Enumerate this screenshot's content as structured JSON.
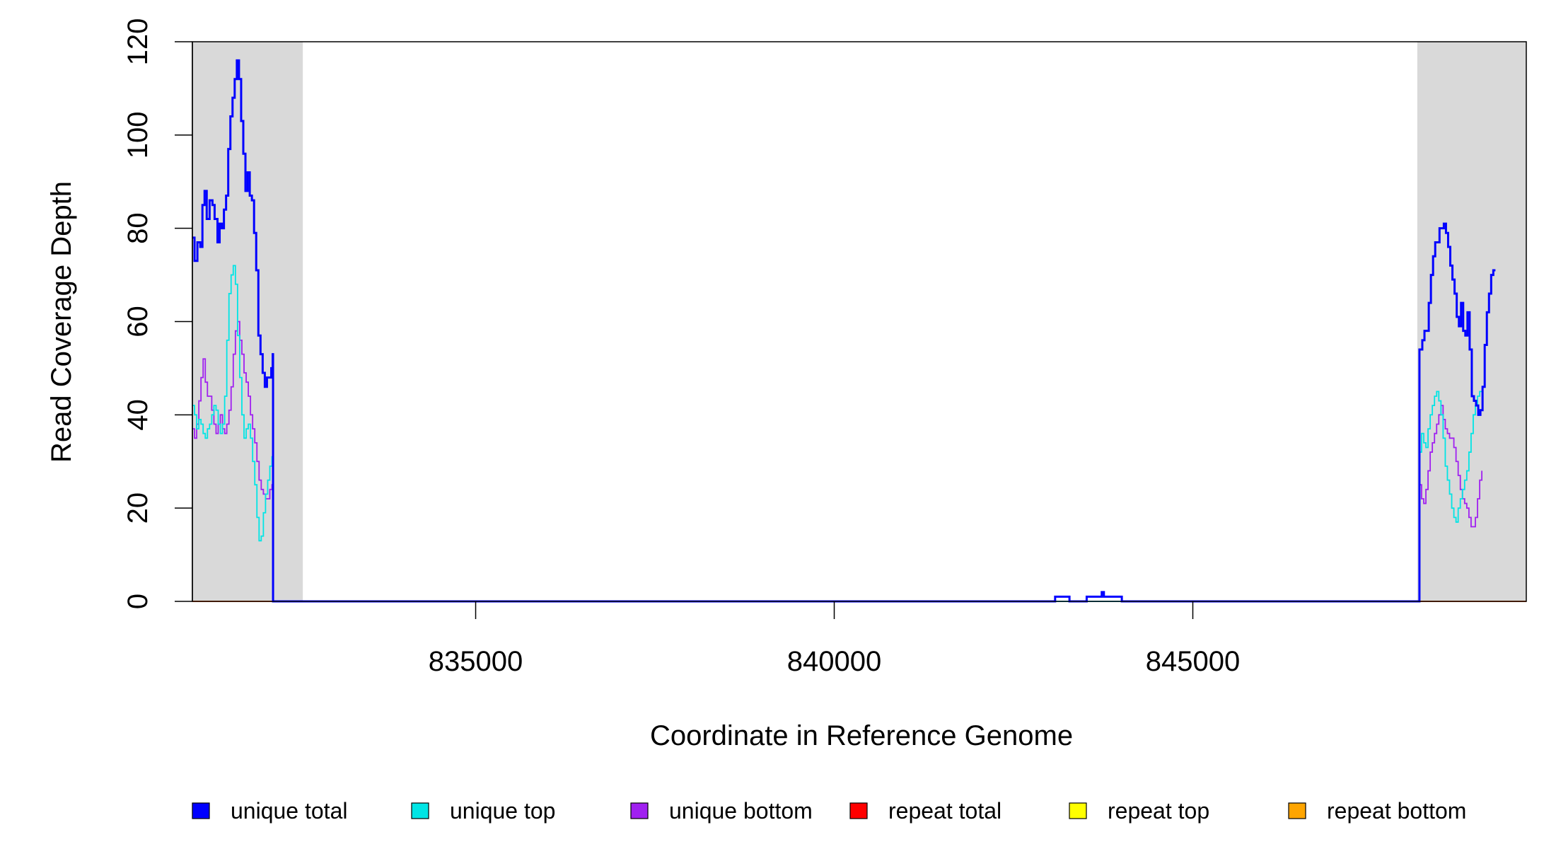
{
  "chart_data": {
    "type": "line",
    "xlabel": "Coordinate in Reference Genome",
    "ylabel": "Read Coverage Depth",
    "xlim": [
      831050,
      849650
    ],
    "ylim": [
      0,
      120
    ],
    "xticks": [
      835000,
      840000,
      845000
    ],
    "yticks": [
      0,
      20,
      40,
      60,
      80,
      100,
      120
    ],
    "grid": false,
    "shaded_regions": [
      {
        "x0": 831050,
        "x1": 832590
      },
      {
        "x0": 848130,
        "x1": 849650
      }
    ],
    "legend": {
      "position": "bottom",
      "entries": [
        {
          "label": "unique total",
          "color": "#0000ff"
        },
        {
          "label": "unique top",
          "color": "#00e5e5"
        },
        {
          "label": "unique bottom",
          "color": "#a020f0"
        },
        {
          "label": "repeat total",
          "color": "#ff0000"
        },
        {
          "label": "repeat top",
          "color": "#ffff00"
        },
        {
          "label": "repeat bottom",
          "color": "#ffa500"
        }
      ]
    },
    "series": [
      {
        "name": "unique total",
        "color": "#0000ff",
        "width": 3,
        "points": [
          [
            831050,
            78
          ],
          [
            831080,
            73
          ],
          [
            831120,
            77
          ],
          [
            831160,
            76
          ],
          [
            831190,
            85
          ],
          [
            831220,
            88
          ],
          [
            831250,
            82
          ],
          [
            831290,
            86
          ],
          [
            831330,
            85
          ],
          [
            831360,
            82
          ],
          [
            831400,
            77
          ],
          [
            831430,
            81
          ],
          [
            831460,
            80
          ],
          [
            831490,
            84
          ],
          [
            831520,
            87
          ],
          [
            831550,
            97
          ],
          [
            831580,
            104
          ],
          [
            831610,
            108
          ],
          [
            831640,
            112
          ],
          [
            831670,
            116
          ],
          [
            831700,
            112
          ],
          [
            831730,
            103
          ],
          [
            831760,
            96
          ],
          [
            831790,
            88
          ],
          [
            831820,
            92
          ],
          [
            831850,
            87
          ],
          [
            831880,
            86
          ],
          [
            831910,
            79
          ],
          [
            831940,
            71
          ],
          [
            831970,
            57
          ],
          [
            832000,
            53
          ],
          [
            832030,
            49
          ],
          [
            832060,
            46
          ],
          [
            832090,
            48
          ],
          [
            832120,
            48
          ],
          [
            832150,
            50
          ],
          [
            832170,
            53
          ],
          [
            832175,
            0
          ],
          [
            843050,
            0
          ],
          [
            843080,
            1
          ],
          [
            843260,
            1
          ],
          [
            843280,
            0
          ],
          [
            843500,
            0
          ],
          [
            843520,
            1
          ],
          [
            843700,
            1
          ],
          [
            843730,
            2
          ],
          [
            843760,
            1
          ],
          [
            843990,
            1
          ],
          [
            844010,
            0
          ],
          [
            848150,
            0
          ],
          [
            848160,
            54
          ],
          [
            848200,
            56
          ],
          [
            848230,
            58
          ],
          [
            848260,
            58
          ],
          [
            848290,
            64
          ],
          [
            848320,
            70
          ],
          [
            848350,
            74
          ],
          [
            848380,
            77
          ],
          [
            848410,
            77
          ],
          [
            848440,
            80
          ],
          [
            848470,
            80
          ],
          [
            848500,
            81
          ],
          [
            848530,
            79
          ],
          [
            848560,
            76
          ],
          [
            848590,
            72
          ],
          [
            848620,
            69
          ],
          [
            848650,
            66
          ],
          [
            848680,
            61
          ],
          [
            848710,
            59
          ],
          [
            848740,
            64
          ],
          [
            848770,
            58
          ],
          [
            848800,
            57
          ],
          [
            848830,
            62
          ],
          [
            848860,
            54
          ],
          [
            848890,
            44
          ],
          [
            848920,
            43
          ],
          [
            848950,
            42
          ],
          [
            848980,
            40
          ],
          [
            849010,
            41
          ],
          [
            849040,
            46
          ],
          [
            849070,
            55
          ],
          [
            849100,
            62
          ],
          [
            849130,
            66
          ],
          [
            849160,
            70
          ],
          [
            849190,
            71
          ],
          [
            849220,
            71
          ]
        ]
      },
      {
        "name": "unique top",
        "color": "#00e5e5",
        "width": 1.8,
        "points": [
          [
            831050,
            42
          ],
          [
            831080,
            40
          ],
          [
            831110,
            37
          ],
          [
            831140,
            39
          ],
          [
            831170,
            38
          ],
          [
            831200,
            36
          ],
          [
            831230,
            35
          ],
          [
            831260,
            37
          ],
          [
            831290,
            38
          ],
          [
            831320,
            40
          ],
          [
            831350,
            42
          ],
          [
            831380,
            41
          ],
          [
            831410,
            38
          ],
          [
            831440,
            36
          ],
          [
            831470,
            38
          ],
          [
            831500,
            44
          ],
          [
            831530,
            56
          ],
          [
            831560,
            66
          ],
          [
            831590,
            70
          ],
          [
            831620,
            72
          ],
          [
            831650,
            68
          ],
          [
            831680,
            57
          ],
          [
            831710,
            48
          ],
          [
            831740,
            40
          ],
          [
            831770,
            35
          ],
          [
            831800,
            37
          ],
          [
            831830,
            38
          ],
          [
            831860,
            35
          ],
          [
            831890,
            30
          ],
          [
            831920,
            25
          ],
          [
            831950,
            18
          ],
          [
            831980,
            13
          ],
          [
            832010,
            14
          ],
          [
            832040,
            19
          ],
          [
            832070,
            23
          ],
          [
            832100,
            26
          ],
          [
            832130,
            29
          ],
          [
            832160,
            31
          ],
          [
            832175,
            0
          ],
          [
            848150,
            0
          ],
          [
            848160,
            32
          ],
          [
            848190,
            36
          ],
          [
            848220,
            34
          ],
          [
            848250,
            33
          ],
          [
            848280,
            37
          ],
          [
            848310,
            40
          ],
          [
            848340,
            42
          ],
          [
            848370,
            44
          ],
          [
            848400,
            45
          ],
          [
            848430,
            43
          ],
          [
            848460,
            40
          ],
          [
            848490,
            35
          ],
          [
            848520,
            29
          ],
          [
            848550,
            26
          ],
          [
            848580,
            23
          ],
          [
            848610,
            20
          ],
          [
            848640,
            18
          ],
          [
            848670,
            17
          ],
          [
            848700,
            20
          ],
          [
            848730,
            22
          ],
          [
            848760,
            24
          ],
          [
            848790,
            26
          ],
          [
            848820,
            28
          ],
          [
            848850,
            32
          ],
          [
            848880,
            36
          ],
          [
            848910,
            40
          ],
          [
            848940,
            42
          ],
          [
            848970,
            44
          ],
          [
            849000,
            45
          ],
          [
            849030,
            45
          ]
        ]
      },
      {
        "name": "unique bottom",
        "color": "#a020f0",
        "width": 1.8,
        "points": [
          [
            831050,
            37
          ],
          [
            831080,
            35
          ],
          [
            831110,
            38
          ],
          [
            831140,
            43
          ],
          [
            831170,
            48
          ],
          [
            831200,
            52
          ],
          [
            831230,
            47
          ],
          [
            831260,
            44
          ],
          [
            831290,
            44
          ],
          [
            831320,
            41
          ],
          [
            831350,
            38
          ],
          [
            831380,
            36
          ],
          [
            831410,
            38
          ],
          [
            831440,
            40
          ],
          [
            831470,
            37
          ],
          [
            831500,
            36
          ],
          [
            831530,
            38
          ],
          [
            831560,
            41
          ],
          [
            831590,
            46
          ],
          [
            831620,
            53
          ],
          [
            831650,
            58
          ],
          [
            831680,
            60
          ],
          [
            831710,
            56
          ],
          [
            831740,
            53
          ],
          [
            831770,
            49
          ],
          [
            831800,
            47
          ],
          [
            831830,
            44
          ],
          [
            831860,
            40
          ],
          [
            831890,
            37
          ],
          [
            831920,
            34
          ],
          [
            831950,
            30
          ],
          [
            831980,
            26
          ],
          [
            832010,
            24
          ],
          [
            832040,
            23
          ],
          [
            832070,
            22
          ],
          [
            832100,
            22
          ],
          [
            832130,
            24
          ],
          [
            832160,
            25
          ],
          [
            832175,
            0
          ],
          [
            848150,
            0
          ],
          [
            848160,
            25
          ],
          [
            848190,
            22
          ],
          [
            848220,
            21
          ],
          [
            848250,
            24
          ],
          [
            848280,
            28
          ],
          [
            848310,
            32
          ],
          [
            848340,
            34
          ],
          [
            848370,
            36
          ],
          [
            848400,
            38
          ],
          [
            848430,
            40
          ],
          [
            848460,
            42
          ],
          [
            848490,
            39
          ],
          [
            848520,
            37
          ],
          [
            848550,
            36
          ],
          [
            848580,
            35
          ],
          [
            848610,
            35
          ],
          [
            848640,
            33
          ],
          [
            848670,
            30
          ],
          [
            848700,
            27
          ],
          [
            848730,
            24
          ],
          [
            848760,
            22
          ],
          [
            848790,
            21
          ],
          [
            848820,
            20
          ],
          [
            848850,
            18
          ],
          [
            848880,
            16
          ],
          [
            848910,
            16
          ],
          [
            848940,
            18
          ],
          [
            848970,
            22
          ],
          [
            849000,
            26
          ],
          [
            849030,
            28
          ]
        ]
      },
      {
        "name": "repeat total",
        "color": "#ff0000",
        "width": 1.5,
        "points": [
          [
            831050,
            0
          ],
          [
            849650,
            0
          ]
        ]
      },
      {
        "name": "repeat top",
        "color": "#ffff00",
        "width": 1.5,
        "points": [
          [
            831050,
            0
          ],
          [
            849650,
            0
          ]
        ]
      },
      {
        "name": "repeat bottom",
        "color": "#ffa500",
        "width": 2,
        "points": [
          [
            831050,
            0
          ],
          [
            849650,
            0
          ]
        ]
      }
    ]
  }
}
